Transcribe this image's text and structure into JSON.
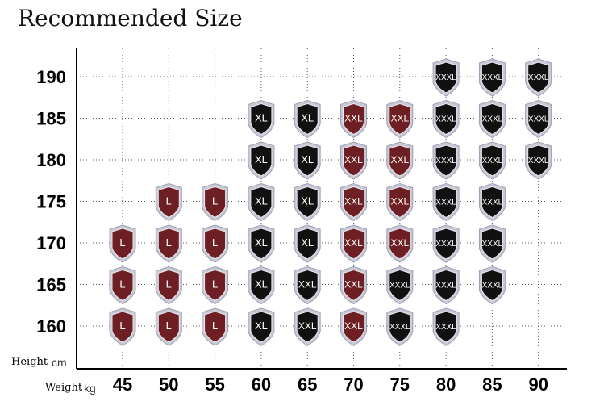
{
  "chart_data": {
    "type": "table",
    "title": "Recommended Size",
    "xlabel": "Weight",
    "xunit": "kg",
    "ylabel": "Height",
    "yunit": "cm",
    "x": [
      45,
      50,
      55,
      60,
      65,
      70,
      75,
      80,
      85,
      90
    ],
    "y": [
      190,
      185,
      180,
      175,
      170,
      165,
      160
    ],
    "grid": true,
    "colors": {
      "L": "#6e1f24",
      "XL": "#111111",
      "XXL": "#6e1f24",
      "XXXL": "#111111",
      "XXL_dark": "#111111"
    },
    "cells": [
      {
        "w": 80,
        "h": 190,
        "size": "XXXL",
        "tone": "dark"
      },
      {
        "w": 85,
        "h": 190,
        "size": "XXXL",
        "tone": "dark"
      },
      {
        "w": 90,
        "h": 190,
        "size": "XXXL",
        "tone": "dark"
      },
      {
        "w": 60,
        "h": 185,
        "size": "XL",
        "tone": "dark"
      },
      {
        "w": 65,
        "h": 185,
        "size": "XL",
        "tone": "dark"
      },
      {
        "w": 70,
        "h": 185,
        "size": "XXL",
        "tone": "red"
      },
      {
        "w": 75,
        "h": 185,
        "size": "XXL",
        "tone": "red"
      },
      {
        "w": 80,
        "h": 185,
        "size": "XXXL",
        "tone": "dark"
      },
      {
        "w": 85,
        "h": 185,
        "size": "XXXL",
        "tone": "dark"
      },
      {
        "w": 90,
        "h": 185,
        "size": "XXXL",
        "tone": "dark"
      },
      {
        "w": 60,
        "h": 180,
        "size": "XL",
        "tone": "dark"
      },
      {
        "w": 65,
        "h": 180,
        "size": "XL",
        "tone": "dark"
      },
      {
        "w": 70,
        "h": 180,
        "size": "XXL",
        "tone": "red"
      },
      {
        "w": 75,
        "h": 180,
        "size": "XXL",
        "tone": "red"
      },
      {
        "w": 80,
        "h": 180,
        "size": "XXXL",
        "tone": "dark"
      },
      {
        "w": 85,
        "h": 180,
        "size": "XXXL",
        "tone": "dark"
      },
      {
        "w": 90,
        "h": 180,
        "size": "XXXL",
        "tone": "dark"
      },
      {
        "w": 50,
        "h": 175,
        "size": "L",
        "tone": "red"
      },
      {
        "w": 55,
        "h": 175,
        "size": "L",
        "tone": "red"
      },
      {
        "w": 60,
        "h": 175,
        "size": "XL",
        "tone": "dark"
      },
      {
        "w": 65,
        "h": 175,
        "size": "XL",
        "tone": "dark"
      },
      {
        "w": 70,
        "h": 175,
        "size": "XXL",
        "tone": "red"
      },
      {
        "w": 75,
        "h": 175,
        "size": "XXL",
        "tone": "red"
      },
      {
        "w": 80,
        "h": 175,
        "size": "XXXL",
        "tone": "dark"
      },
      {
        "w": 85,
        "h": 175,
        "size": "XXXL",
        "tone": "dark"
      },
      {
        "w": 45,
        "h": 170,
        "size": "L",
        "tone": "red"
      },
      {
        "w": 50,
        "h": 170,
        "size": "L",
        "tone": "red"
      },
      {
        "w": 55,
        "h": 170,
        "size": "L",
        "tone": "red"
      },
      {
        "w": 60,
        "h": 170,
        "size": "XL",
        "tone": "dark"
      },
      {
        "w": 65,
        "h": 170,
        "size": "XL",
        "tone": "dark"
      },
      {
        "w": 70,
        "h": 170,
        "size": "XXL",
        "tone": "red"
      },
      {
        "w": 75,
        "h": 170,
        "size": "XXL",
        "tone": "red"
      },
      {
        "w": 80,
        "h": 170,
        "size": "XXXL",
        "tone": "dark"
      },
      {
        "w": 85,
        "h": 170,
        "size": "XXXL",
        "tone": "dark"
      },
      {
        "w": 45,
        "h": 165,
        "size": "L",
        "tone": "red"
      },
      {
        "w": 50,
        "h": 165,
        "size": "L",
        "tone": "red"
      },
      {
        "w": 55,
        "h": 165,
        "size": "L",
        "tone": "red"
      },
      {
        "w": 60,
        "h": 165,
        "size": "XL",
        "tone": "dark"
      },
      {
        "w": 65,
        "h": 165,
        "size": "XXL",
        "tone": "dark"
      },
      {
        "w": 70,
        "h": 165,
        "size": "XXL",
        "tone": "red"
      },
      {
        "w": 75,
        "h": 165,
        "size": "XXXL",
        "tone": "dark"
      },
      {
        "w": 80,
        "h": 165,
        "size": "XXXL",
        "tone": "dark"
      },
      {
        "w": 85,
        "h": 165,
        "size": "XXXL",
        "tone": "dark"
      },
      {
        "w": 45,
        "h": 160,
        "size": "L",
        "tone": "red"
      },
      {
        "w": 50,
        "h": 160,
        "size": "L",
        "tone": "red"
      },
      {
        "w": 55,
        "h": 160,
        "size": "L",
        "tone": "red"
      },
      {
        "w": 60,
        "h": 160,
        "size": "XL",
        "tone": "dark"
      },
      {
        "w": 65,
        "h": 160,
        "size": "XXL",
        "tone": "dark"
      },
      {
        "w": 70,
        "h": 160,
        "size": "XXL",
        "tone": "red"
      },
      {
        "w": 75,
        "h": 160,
        "size": "XXXL",
        "tone": "dark"
      },
      {
        "w": 80,
        "h": 160,
        "size": "XXXL",
        "tone": "dark"
      }
    ]
  }
}
